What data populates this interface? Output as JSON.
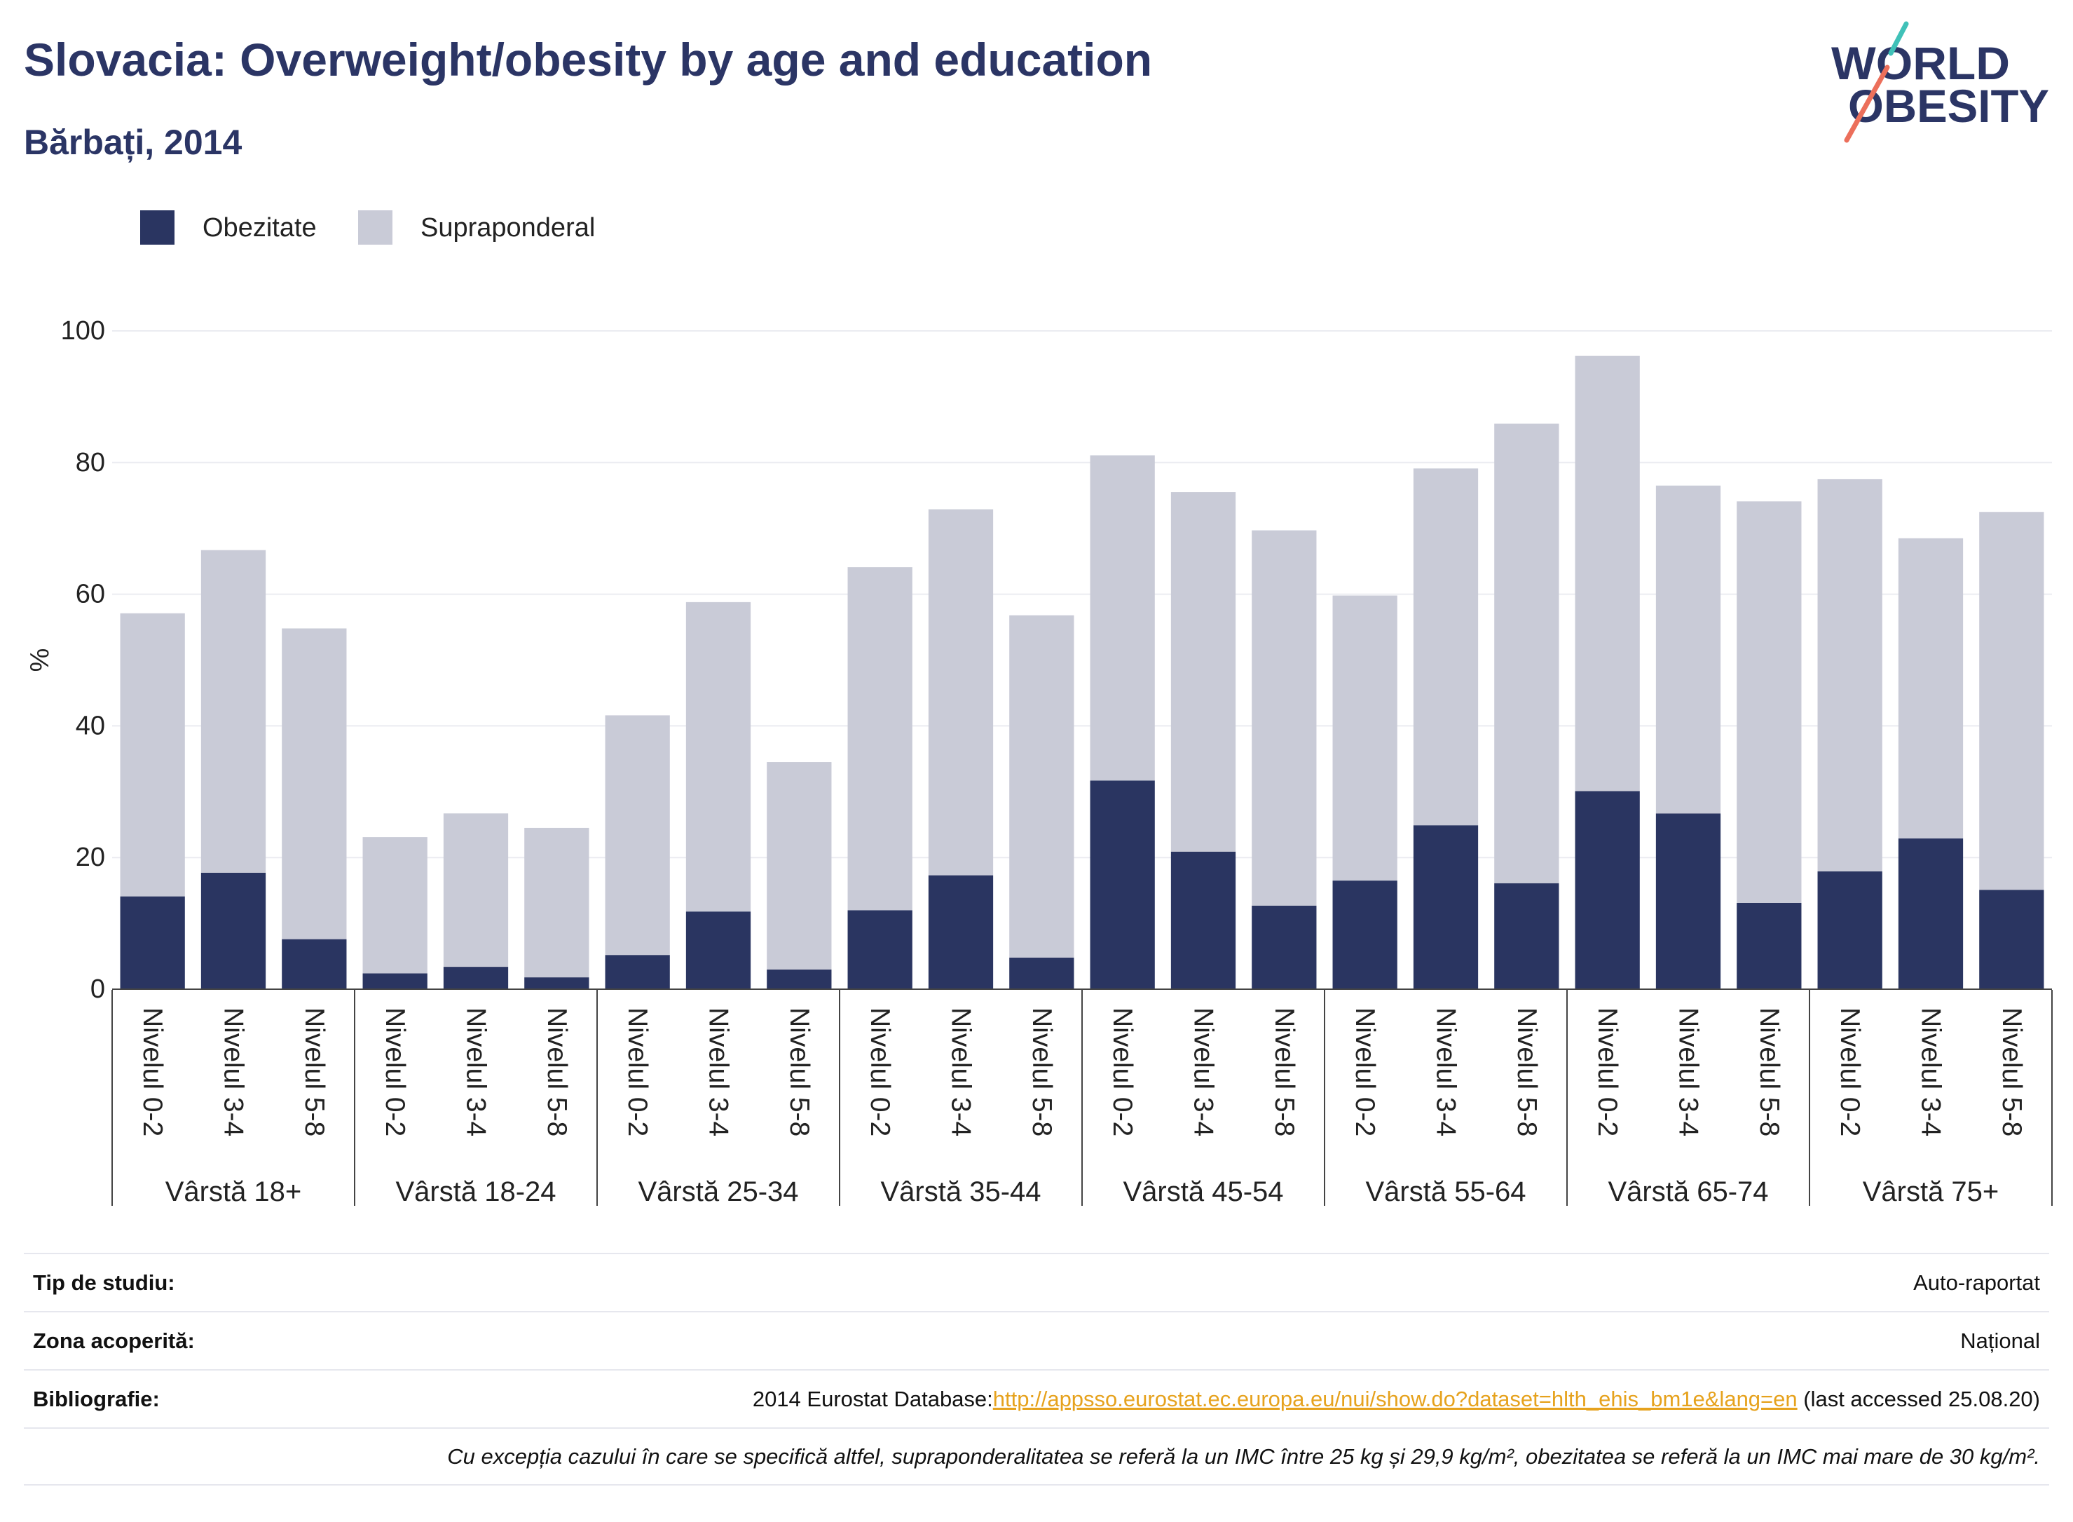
{
  "header": {
    "title": "Slovacia: Overweight/obesity by age and education",
    "subtitle": "Bărbați, 2014"
  },
  "logo": {
    "line1": "WORLD",
    "line2": "OBESITY"
  },
  "colors": {
    "title": "#2b3565",
    "grid": "#ebecf1",
    "axis": "#444444",
    "link": "#e6a21d",
    "logo_text": "#2b3565",
    "logo_teal": "#40c1b8",
    "logo_coral": "#ec6f5b"
  },
  "chart_data": {
    "type": "bar",
    "stacked": true,
    "title": "Slovacia: Overweight/obesity by age and education",
    "subtitle": "Bărbați, 2014",
    "xlabel": "",
    "ylabel": "%",
    "ylim": [
      0,
      100
    ],
    "yticks": [
      0,
      20,
      40,
      60,
      80,
      100
    ],
    "grid": true,
    "legend_position": "top-left",
    "groups": [
      {
        "label": "Vârstă 18+",
        "categories": [
          "Nivelul 0-2",
          "Nivelul 3-4",
          "Nivelul 5-8"
        ]
      },
      {
        "label": "Vârstă 18-24",
        "categories": [
          "Nivelul 0-2",
          "Nivelul 3-4",
          "Nivelul 5-8"
        ]
      },
      {
        "label": "Vârstă 25-34",
        "categories": [
          "Nivelul 0-2",
          "Nivelul 3-4",
          "Nivelul 5-8"
        ]
      },
      {
        "label": "Vârstă 35-44",
        "categories": [
          "Nivelul 0-2",
          "Nivelul 3-4",
          "Nivelul 5-8"
        ]
      },
      {
        "label": "Vârstă 45-54",
        "categories": [
          "Nivelul 0-2",
          "Nivelul 3-4",
          "Nivelul 5-8"
        ]
      },
      {
        "label": "Vârstă 55-64",
        "categories": [
          "Nivelul 0-2",
          "Nivelul 3-4",
          "Nivelul 5-8"
        ]
      },
      {
        "label": "Vârstă 65-74",
        "categories": [
          "Nivelul 0-2",
          "Nivelul 3-4",
          "Nivelul 5-8"
        ]
      },
      {
        "label": "Vârstă 75+",
        "categories": [
          "Nivelul 0-2",
          "Nivelul 3-4",
          "Nivelul 5-8"
        ]
      }
    ],
    "series": [
      {
        "name": "Obezitate",
        "color": "#2a3561",
        "values": [
          14.1,
          17.7,
          7.6,
          2.4,
          3.4,
          1.8,
          5.2,
          11.8,
          3.0,
          12.0,
          17.3,
          4.8,
          31.7,
          20.9,
          12.7,
          16.5,
          24.9,
          16.1,
          30.1,
          26.7,
          13.1,
          17.9,
          22.9,
          15.1
        ]
      },
      {
        "name": "Supraponderal",
        "color": "#c9cbd7",
        "values": [
          43.0,
          49.0,
          47.2,
          20.7,
          23.3,
          22.7,
          36.4,
          47.0,
          31.5,
          52.1,
          55.6,
          52.0,
          49.4,
          54.6,
          57.0,
          43.3,
          54.2,
          69.8,
          66.1,
          49.8,
          61.0,
          59.6,
          45.6,
          57.4
        ]
      }
    ]
  },
  "footer": {
    "study_type": {
      "label": "Tip de studiu:",
      "value": "Auto-raportat"
    },
    "coverage": {
      "label": "Zona acoperită:",
      "value": "Național"
    },
    "bibliography": {
      "label": "Bibliografie:",
      "prefix": "2014 Eurostat Database:",
      "link": "http://appsso.eurostat.ec.europa.eu/nui/show.do?dataset=hlth_ehis_bm1e&lang=en",
      "suffix": " (last accessed 25.08.20)"
    },
    "note": "Cu excepția cazului în care se specifică altfel, supraponderalitatea se referă la un IMC între 25 kg și 29,9 kg/m², obezitatea se referă la un IMC mai mare de 30 kg/m²."
  }
}
